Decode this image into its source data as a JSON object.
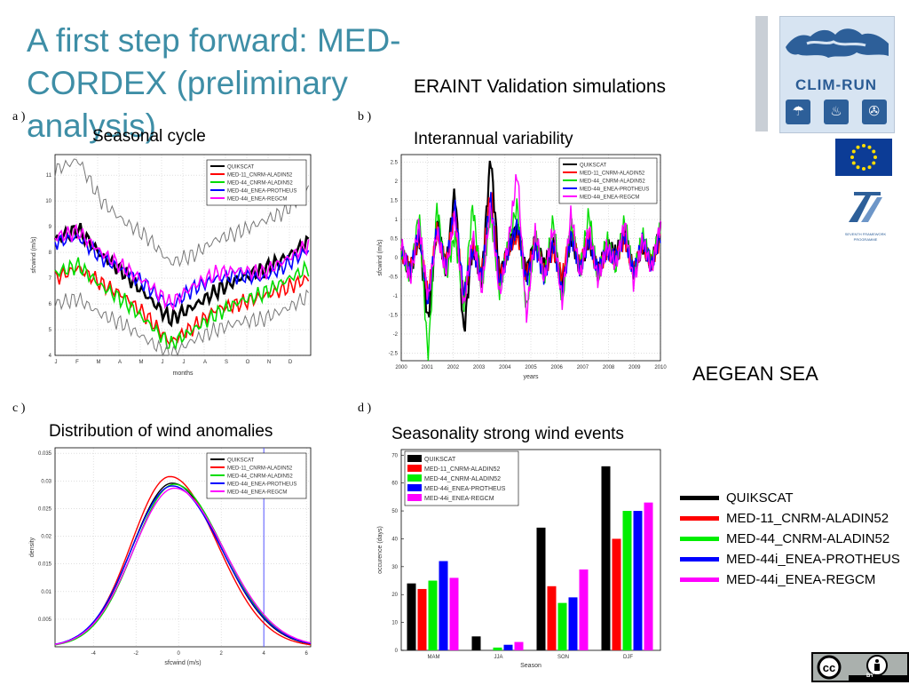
{
  "slide": {
    "title": "A first step forward: MED-CORDEX (preliminary analysis)",
    "subtitle": "ERAINT Validation simulations",
    "region": "AEGEAN SEA",
    "panels": {
      "a": "a )",
      "b": "b )",
      "c": "c )",
      "d": "d )"
    },
    "captions": {
      "a": "Seasonal cycle",
      "b": "Interannual variability",
      "c": "Distribution of wind anomalies",
      "d": "Seasonality strong wind events"
    },
    "logos": {
      "clim_run": "CLIM-RUN",
      "fp7_line1": "SEVENTH FRAMEWORK",
      "fp7_line2": "PROGRAMME",
      "cc_label": "BY"
    },
    "big_legend": [
      {
        "name": "QUIKSCAT",
        "color": "#000000"
      },
      {
        "name": "MED-11_CNRM-ALADIN52",
        "color": "#ff0000"
      },
      {
        "name": "MED-44_CNRM-ALADIN52",
        "color": "#00ee00"
      },
      {
        "name": "MED-44i_ENEA-PROTHEUS",
        "color": "#0000ff"
      },
      {
        "name": "MED-44i_ENEA-REGCM",
        "color": "#ff00ff"
      }
    ]
  },
  "chart_data": [
    {
      "id": "seasonal",
      "type": "line",
      "xlabel": "months",
      "ylabel": "sfcwind (m/s)",
      "ylim": [
        4,
        11.8
      ],
      "xlim": [
        0,
        12
      ],
      "categories": [
        "J",
        "F",
        "M",
        "A",
        "M",
        "J",
        "J",
        "A",
        "S",
        "O",
        "N",
        "D"
      ],
      "yticks": [
        4,
        5,
        6,
        7,
        8,
        9,
        10,
        11
      ],
      "grid": true,
      "legend": "top-right",
      "series": [
        {
          "name": "QUIKSCAT",
          "color": "#000000",
          "values": [
            8.5,
            8.9,
            7.9,
            7.2,
            6.3,
            5.4,
            5.9,
            6.5,
            7.0,
            7.3,
            7.8,
            8.4
          ]
        },
        {
          "name": "MED-11_CNRM-ALADIN52",
          "color": "#ff0000",
          "values": [
            7.0,
            7.4,
            6.8,
            6.3,
            5.5,
            4.5,
            5.1,
            5.8,
            6.0,
            6.3,
            6.6,
            7.0
          ]
        },
        {
          "name": "MED-44_CNRM-ALADIN52",
          "color": "#00dd00",
          "values": [
            7.2,
            7.5,
            6.7,
            6.1,
            5.3,
            4.4,
            5.0,
            5.6,
            6.1,
            6.4,
            6.9,
            7.4
          ]
        },
        {
          "name": "MED-44i_ENEA-PROTHEUS",
          "color": "#0000ff",
          "values": [
            8.4,
            8.6,
            7.8,
            7.3,
            6.7,
            5.9,
            6.6,
            7.0,
            7.1,
            7.0,
            7.5,
            8.1
          ]
        },
        {
          "name": "MED-44i_ENEA-REGCM",
          "color": "#ff00ff",
          "values": [
            8.6,
            8.8,
            8.0,
            7.4,
            6.8,
            6.0,
            6.7,
            7.2,
            7.3,
            7.2,
            7.7,
            8.3
          ]
        },
        {
          "name": "",
          "color": "#777777",
          "values": [
            11.2,
            11.6,
            10.0,
            9.2,
            8.6,
            7.6,
            7.9,
            8.5,
            8.8,
            9.2,
            9.6,
            10.5
          ]
        },
        {
          "name": "",
          "color": "#777777",
          "values": [
            6.0,
            6.2,
            5.6,
            5.2,
            4.6,
            4.0,
            4.6,
            5.0,
            5.3,
            5.4,
            5.8,
            6.3
          ]
        }
      ]
    },
    {
      "id": "interannual",
      "type": "line",
      "xlabel": "years",
      "ylabel": "sfcwind (m/s)",
      "xlim": [
        2000,
        2010
      ],
      "ylim": [
        -2.7,
        2.7
      ],
      "xticks": [
        2000,
        2001,
        2002,
        2003,
        2004,
        2005,
        2006,
        2007,
        2008,
        2009,
        2010
      ],
      "yticks": [
        -2.5,
        -2,
        -1.5,
        -1,
        -0.5,
        0,
        0.5,
        1,
        1.5,
        2,
        2.5
      ],
      "grid": true,
      "legend": "top-right",
      "series": [
        {
          "name": "QUIKSCAT",
          "color": "#000000",
          "values": [
            0.2,
            -0.4,
            0.6,
            -1.7,
            0.9,
            -0.3,
            1.8,
            -2.0,
            0.4,
            -0.6,
            2.7,
            -0.5,
            0.3,
            0.8,
            -0.4,
            0.5,
            -0.2,
            0.4,
            -0.7,
            0.6,
            -0.3,
            0.5,
            -0.4,
            0.3,
            0.1,
            0.6,
            -0.4,
            0.3,
            -0.2,
            0.7
          ]
        },
        {
          "name": "MED-11_CNRM-ALADIN52",
          "color": "#ff0000",
          "values": [
            0.1,
            -0.3,
            0.5,
            -1.0,
            0.7,
            -0.2,
            1.2,
            -1.1,
            0.3,
            -0.4,
            1.8,
            -0.6,
            0.2,
            0.6,
            -0.5,
            0.4,
            -0.4,
            0.2,
            -0.5,
            0.7,
            -0.2,
            0.6,
            -0.4,
            0.2,
            0.0,
            0.5,
            -0.3,
            0.4,
            -0.1,
            0.5
          ]
        },
        {
          "name": "MED-44_CNRM-ALADIN52",
          "color": "#00dd00",
          "values": [
            0.3,
            -0.5,
            1.2,
            -2.7,
            1.4,
            -0.5,
            0.6,
            -1.2,
            1.4,
            -0.8,
            1.2,
            -0.9,
            0.4,
            1.4,
            -1.4,
            0.6,
            -0.6,
            1.0,
            -1.2,
            0.9,
            -0.4,
            1.2,
            -0.6,
            0.5,
            -0.3,
            1.0,
            -0.5,
            0.6,
            -0.2,
            0.8
          ]
        },
        {
          "name": "MED-44i_ENEA-PROTHEUS",
          "color": "#0000ff",
          "values": [
            0.2,
            -0.4,
            0.7,
            -1.2,
            0.8,
            -0.3,
            1.4,
            -1.0,
            0.2,
            -0.5,
            1.6,
            -0.7,
            0.2,
            0.9,
            -0.6,
            0.3,
            -0.5,
            0.4,
            -0.9,
            0.6,
            -0.3,
            0.5,
            -0.3,
            0.2,
            0.0,
            0.6,
            -0.4,
            0.5,
            -0.2,
            0.6
          ]
        },
        {
          "name": "MED-44i_ENEA-REGCM",
          "color": "#ff00ff",
          "values": [
            0.4,
            -0.6,
            0.9,
            -1.1,
            0.7,
            -0.4,
            1.1,
            -1.3,
            0.6,
            -0.9,
            1.4,
            -1.0,
            0.4,
            2.3,
            -1.6,
            0.7,
            -0.6,
            0.8,
            -1.2,
            1.2,
            -0.5,
            0.8,
            -0.6,
            0.3,
            -0.2,
            0.9,
            -0.7,
            0.5,
            -0.3,
            0.9
          ]
        }
      ]
    },
    {
      "id": "distribution",
      "type": "line",
      "xlabel": "sfcwind (m/s)",
      "ylabel": "density",
      "xlim": [
        -5.8,
        6.2
      ],
      "ylim": [
        0,
        0.036
      ],
      "xticks": [
        -4,
        -2,
        0,
        2,
        4,
        6
      ],
      "yticks": [
        0.005,
        0.01,
        0.015,
        0.02,
        0.025,
        0.03,
        0.035
      ],
      "grid": true,
      "legend": "top-right",
      "vline": 4,
      "series": [
        {
          "name": "QUIKSCAT",
          "color": "#000000",
          "mean": -0.3,
          "peak": 0.0296,
          "sigma": 2.05
        },
        {
          "name": "MED-11_CNRM-ALADIN52",
          "color": "#ff0000",
          "mean": -0.4,
          "peak": 0.0308,
          "sigma": 1.98
        },
        {
          "name": "MED-44_CNRM-ALADIN52",
          "color": "#00dd00",
          "mean": -0.2,
          "peak": 0.0294,
          "sigma": 2.05
        },
        {
          "name": "MED-44i_ENEA-PROTHEUS",
          "color": "#0000ff",
          "mean": -0.3,
          "peak": 0.0291,
          "sigma": 2.08
        },
        {
          "name": "MED-44i_ENEA-REGCM",
          "color": "#ff00ff",
          "mean": -0.2,
          "peak": 0.0287,
          "sigma": 2.1
        }
      ]
    },
    {
      "id": "strongwind",
      "type": "bar",
      "xlabel": "Season",
      "ylabel": "occurence (days)",
      "ylim": [
        0,
        72
      ],
      "yticks": [
        0,
        10,
        20,
        30,
        40,
        50,
        60,
        70
      ],
      "categories": [
        "MAM",
        "JJA",
        "SON",
        "DJF"
      ],
      "grid": false,
      "legend": "top-left",
      "series": [
        {
          "name": "QUIKSCAT",
          "color": "#000000",
          "values": [
            24,
            5,
            44,
            66
          ]
        },
        {
          "name": "MED-11_CNRM-ALADIN52",
          "color": "#ff0000",
          "values": [
            22,
            0,
            23,
            40
          ]
        },
        {
          "name": "MED-44_CNRM-ALADIN52",
          "color": "#00ee00",
          "values": [
            25,
            1,
            17,
            50
          ]
        },
        {
          "name": "MED-44i_ENEA-PROTHEUS",
          "color": "#0000ff",
          "values": [
            32,
            2,
            19,
            50
          ]
        },
        {
          "name": "MED-44i_ENEA-REGCM",
          "color": "#ff00ff",
          "values": [
            26,
            3,
            29,
            53
          ]
        }
      ]
    }
  ]
}
